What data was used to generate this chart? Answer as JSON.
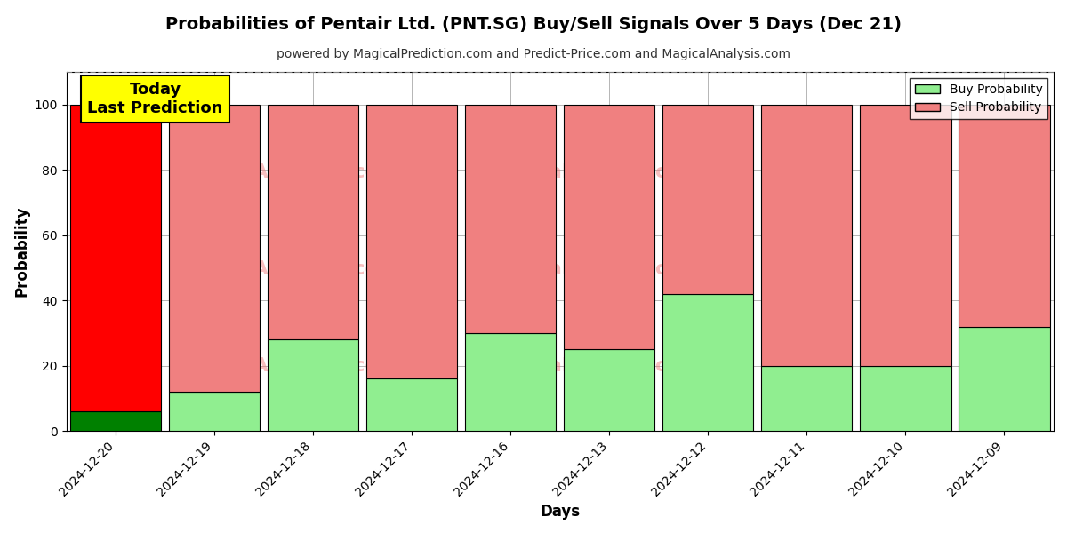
{
  "title": "Probabilities of Pentair Ltd. (PNT.SG) Buy/Sell Signals Over 5 Days (Dec 21)",
  "subtitle": "powered by MagicalPrediction.com and Predict-Price.com and MagicalAnalysis.com",
  "xlabel": "Days",
  "ylabel": "Probability",
  "categories": [
    "2024-12-20",
    "2024-12-19",
    "2024-12-18",
    "2024-12-17",
    "2024-12-16",
    "2024-12-13",
    "2024-12-12",
    "2024-12-11",
    "2024-12-10",
    "2024-12-09"
  ],
  "buy_values": [
    6,
    12,
    28,
    16,
    30,
    25,
    42,
    20,
    20,
    32
  ],
  "sell_values": [
    94,
    88,
    72,
    84,
    70,
    75,
    58,
    80,
    80,
    68
  ],
  "buy_color_today": "#008000",
  "sell_color_today": "#ff0000",
  "buy_color_other": "#90ee90",
  "sell_color_other": "#f08080",
  "today_label": "Today\nLast Prediction",
  "legend_buy": "Buy Probability",
  "legend_sell": "Sell Probability",
  "ylim": [
    0,
    110
  ],
  "dashed_line_y": 110,
  "background_color": "#ffffff",
  "grid_color": "#aaaaaa",
  "bar_edge_color": "#000000",
  "today_box_color": "#ffff00",
  "today_box_edge": "#000000",
  "bar_width": 0.92
}
